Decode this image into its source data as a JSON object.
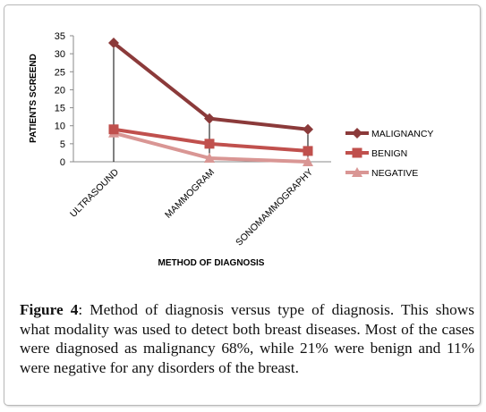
{
  "chart_data": {
    "type": "line",
    "categories": [
      "ULTRASOUND",
      "MAMMOGRAM",
      "SONOMAMMOGRAPHY"
    ],
    "series": [
      {
        "name": "MALIGNANCY",
        "values": [
          33,
          12,
          9
        ],
        "color": "#8b3a3a"
      },
      {
        "name": "BENIGN",
        "values": [
          9,
          5,
          3
        ],
        "color": "#c0504d"
      },
      {
        "name": "NEGATIVE",
        "values": [
          8,
          1,
          0
        ],
        "color": "#d99694"
      }
    ],
    "xlabel": "METHOD OF DIAGNOSIS",
    "ylabel": "PATIENTS SCREEND",
    "ylim": [
      0,
      35
    ],
    "yticks": [
      0,
      5,
      10,
      15,
      20,
      25,
      30,
      35
    ],
    "grid": false,
    "legend": "right"
  },
  "caption": {
    "label": "Figure 4",
    "text": ": Method of diagnosis versus type of diagnosis. This shows what modality was used to detect both breast diseases. Most of the cases were diagnosed as malignancy 68%, while 21% were benign and 11% were negative for any disorders of the breast."
  }
}
